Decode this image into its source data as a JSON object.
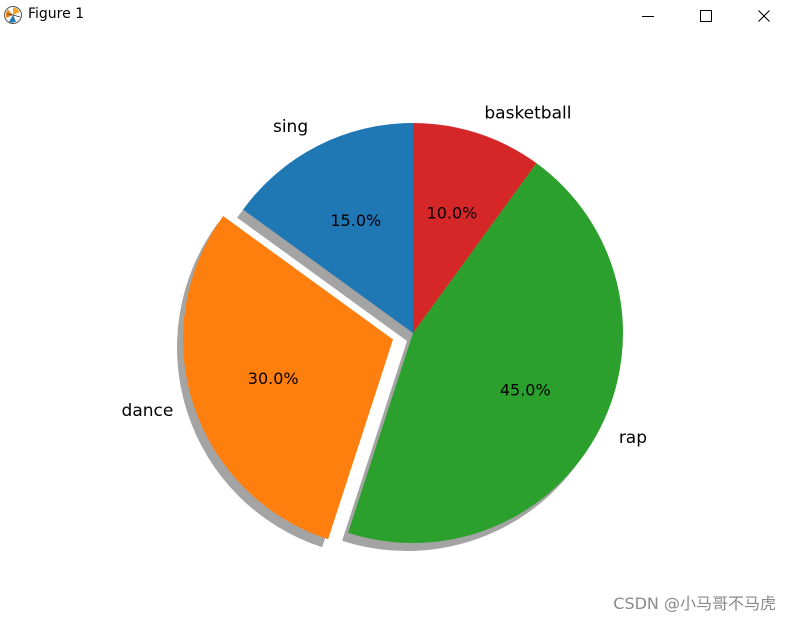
{
  "window": {
    "title": "Figure 1",
    "controls": [
      "minimize",
      "maximize",
      "close"
    ]
  },
  "chart_data": {
    "type": "pie",
    "categories": [
      "sing",
      "dance",
      "rap",
      "basketball"
    ],
    "values": [
      15,
      30,
      45,
      10
    ],
    "percent_labels": [
      "15.0%",
      "30.0%",
      "45.0%",
      "10.0%"
    ],
    "colors": [
      "#1f77b4",
      "#ff7f0e",
      "#2ca02c",
      "#d62728"
    ],
    "explode": [
      0,
      0.1,
      0,
      0
    ],
    "shadow": true,
    "start_angle_deg": 90,
    "direction": "counterclockwise"
  },
  "watermark": "CSDN @小马哥不马虎"
}
